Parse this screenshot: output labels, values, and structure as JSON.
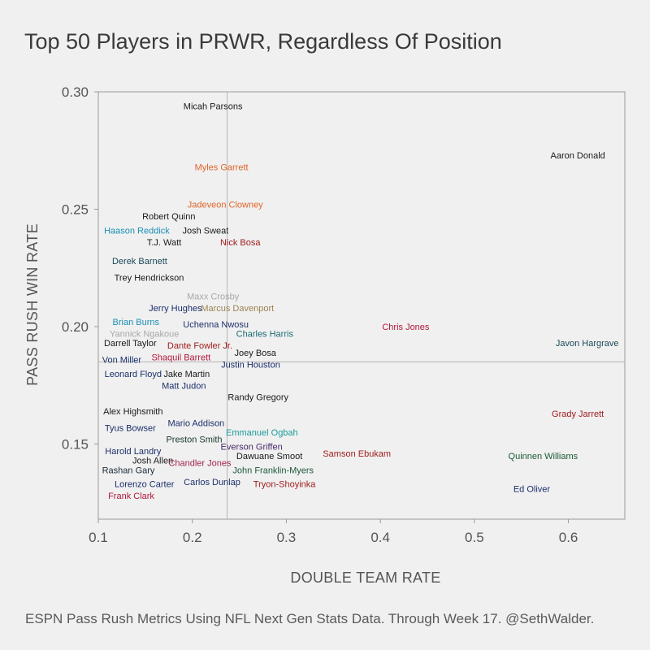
{
  "chart_data": {
    "type": "scatter",
    "title": "Top 50 Players in PRWR, Regardless Of Position",
    "caption": "ESPN Pass Rush Metrics Using NFL Next Gen Stats Data. Through Week 17. @SethWalder.",
    "xlabel": "DOUBLE TEAM RATE",
    "ylabel": "PASS RUSH WIN RATE",
    "xlim": [
      0.1,
      0.66
    ],
    "ylim": [
      0.118,
      0.3
    ],
    "xticks": [
      0.1,
      0.2,
      0.3,
      0.4,
      0.5,
      0.6
    ],
    "xtick_labels": [
      "0.1",
      "0.2",
      "0.3",
      "0.4",
      "0.5",
      "0.6"
    ],
    "yticks": [
      0.15,
      0.2,
      0.25,
      0.3
    ],
    "ytick_labels": [
      "0.15",
      "0.20",
      "0.25",
      "0.30"
    ],
    "x_reference_line": 0.237,
    "y_reference_line": 0.185,
    "points": [
      {
        "name": "Micah Parsons",
        "x": 0.222,
        "y": 0.294,
        "color": "#1a1a1a"
      },
      {
        "name": "Aaron Donald",
        "x": 0.61,
        "y": 0.273,
        "color": "#1a1a1a"
      },
      {
        "name": "Myles Garrett",
        "x": 0.231,
        "y": 0.268,
        "color": "#e0642a"
      },
      {
        "name": "Jadeveon Clowney",
        "x": 0.235,
        "y": 0.252,
        "color": "#e0642a"
      },
      {
        "name": "Robert Quinn",
        "x": 0.175,
        "y": 0.247,
        "color": "#1a1a1a"
      },
      {
        "name": "Haason Reddick",
        "x": 0.141,
        "y": 0.241,
        "color": "#1a8fb5"
      },
      {
        "name": "Josh Sweat",
        "x": 0.214,
        "y": 0.241,
        "color": "#1a1a1a"
      },
      {
        "name": "T.J. Watt",
        "x": 0.17,
        "y": 0.236,
        "color": "#1a1a1a"
      },
      {
        "name": "Nick Bosa",
        "x": 0.251,
        "y": 0.236,
        "color": "#a01d1d"
      },
      {
        "name": "Derek Barnett",
        "x": 0.144,
        "y": 0.228,
        "color": "#1c4a57"
      },
      {
        "name": "Trey Hendrickson",
        "x": 0.154,
        "y": 0.221,
        "color": "#1a1a1a"
      },
      {
        "name": "Maxx Crosby",
        "x": 0.222,
        "y": 0.213,
        "color": "#a8a8a8"
      },
      {
        "name": "Jerry Hughes",
        "x": 0.182,
        "y": 0.208,
        "color": "#1c2f6b"
      },
      {
        "name": "Marcus Davenport",
        "x": 0.248,
        "y": 0.208,
        "color": "#9d8451"
      },
      {
        "name": "Brian Burns",
        "x": 0.14,
        "y": 0.202,
        "color": "#1a8fb5"
      },
      {
        "name": "Uchenna Nwosu",
        "x": 0.225,
        "y": 0.201,
        "color": "#1c2f6b"
      },
      {
        "name": "Chris Jones",
        "x": 0.427,
        "y": 0.2,
        "color": "#b3173a"
      },
      {
        "name": "Yannick Ngakoue",
        "x": 0.149,
        "y": 0.197,
        "color": "#a8a8a8"
      },
      {
        "name": "Charles Harris",
        "x": 0.277,
        "y": 0.197,
        "color": "#1c6a75"
      },
      {
        "name": "Javon Hargrave",
        "x": 0.62,
        "y": 0.193,
        "color": "#1c4a57"
      },
      {
        "name": "Darrell Taylor",
        "x": 0.134,
        "y": 0.193,
        "color": "#1a1a1a"
      },
      {
        "name": "Dante Fowler Jr.",
        "x": 0.208,
        "y": 0.192,
        "color": "#a01d1d"
      },
      {
        "name": "Joey Bosa",
        "x": 0.267,
        "y": 0.189,
        "color": "#1a1a1a"
      },
      {
        "name": "Von Miller",
        "x": 0.125,
        "y": 0.186,
        "color": "#1c2f6b"
      },
      {
        "name": "Shaquil Barrett",
        "x": 0.188,
        "y": 0.187,
        "color": "#b3173a"
      },
      {
        "name": "Justin Houston",
        "x": 0.262,
        "y": 0.184,
        "color": "#1c2f6b"
      },
      {
        "name": "Leonard Floyd",
        "x": 0.137,
        "y": 0.18,
        "color": "#1c2f6b"
      },
      {
        "name": "Jake Martin",
        "x": 0.194,
        "y": 0.18,
        "color": "#1a1a1a"
      },
      {
        "name": "Matt Judon",
        "x": 0.191,
        "y": 0.175,
        "color": "#1c2f6b"
      },
      {
        "name": "Randy Gregory",
        "x": 0.27,
        "y": 0.17,
        "color": "#1a1a1a"
      },
      {
        "name": "Alex Highsmith",
        "x": 0.137,
        "y": 0.164,
        "color": "#1a1a1a"
      },
      {
        "name": "Grady Jarrett",
        "x": 0.61,
        "y": 0.163,
        "color": "#a01d1d"
      },
      {
        "name": "Mario Addison",
        "x": 0.204,
        "y": 0.159,
        "color": "#1c2f6b"
      },
      {
        "name": "Tyus Bowser",
        "x": 0.134,
        "y": 0.157,
        "color": "#1c2f6b"
      },
      {
        "name": "Emmanuel Ogbah",
        "x": 0.274,
        "y": 0.155,
        "color": "#1a9a9a"
      },
      {
        "name": "Preston Smith",
        "x": 0.202,
        "y": 0.152,
        "color": "#1a3a2a"
      },
      {
        "name": "Everson Griffen",
        "x": 0.263,
        "y": 0.149,
        "color": "#4a2a6b"
      },
      {
        "name": "Harold Landry",
        "x": 0.137,
        "y": 0.147,
        "color": "#1c2f6b"
      },
      {
        "name": "Dawuane Smoot",
        "x": 0.282,
        "y": 0.145,
        "color": "#1a1a1a"
      },
      {
        "name": "Samson Ebukam",
        "x": 0.375,
        "y": 0.146,
        "color": "#a01d1d"
      },
      {
        "name": "Josh Allen",
        "x": 0.158,
        "y": 0.143,
        "color": "#1a1a1a"
      },
      {
        "name": "Quinnen Williams",
        "x": 0.573,
        "y": 0.145,
        "color": "#1c5a3a"
      },
      {
        "name": "Chandler Jones",
        "x": 0.208,
        "y": 0.142,
        "color": "#a0244a"
      },
      {
        "name": "Rashan Gary",
        "x": 0.132,
        "y": 0.139,
        "color": "#1a2a3a"
      },
      {
        "name": "John Franklin-Myers",
        "x": 0.286,
        "y": 0.139,
        "color": "#1c5a3a"
      },
      {
        "name": "Carlos Dunlap",
        "x": 0.221,
        "y": 0.134,
        "color": "#1c2f6b"
      },
      {
        "name": "Lorenzo Carter",
        "x": 0.149,
        "y": 0.133,
        "color": "#1c2f6b"
      },
      {
        "name": "Tryon-Shoyinka",
        "x": 0.298,
        "y": 0.133,
        "color": "#a01d1d"
      },
      {
        "name": "Ed Oliver",
        "x": 0.561,
        "y": 0.131,
        "color": "#1c2f6b"
      },
      {
        "name": "Frank Clark",
        "x": 0.135,
        "y": 0.128,
        "color": "#b3173a"
      }
    ]
  }
}
